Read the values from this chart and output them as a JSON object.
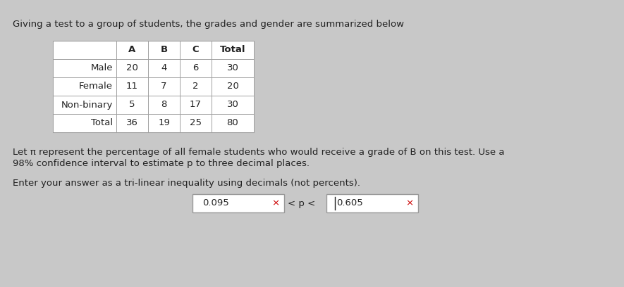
{
  "title_text": "Giving a test to a group of students, the grades and gender are summarized below",
  "table_headers": [
    "",
    "A",
    "B",
    "C",
    "Total"
  ],
  "table_rows": [
    [
      "Male",
      "20",
      "4",
      "6",
      "30"
    ],
    [
      "Female",
      "11",
      "7",
      "2",
      "20"
    ],
    [
      "Non-binary",
      "5",
      "8",
      "17",
      "30"
    ],
    [
      "Total",
      "36",
      "19",
      "25",
      "80"
    ]
  ],
  "paragraph1": "Let π represent the percentage of all female students who would receive a grade of B on this test. Use a",
  "paragraph2": "98% confidence interval to estimate p to three decimal places.",
  "paragraph3": "Enter your answer as a tri-linear inequality using decimals (not percents).",
  "answer_left": "0.095",
  "answer_right": "0.605",
  "bg_color": "#c8c8c8",
  "box_bg": "#ffffff",
  "text_color": "#222222",
  "red_color": "#cc0000",
  "title_fontsize": 9.5,
  "body_fontsize": 9.5,
  "table_fontsize": 9.5
}
